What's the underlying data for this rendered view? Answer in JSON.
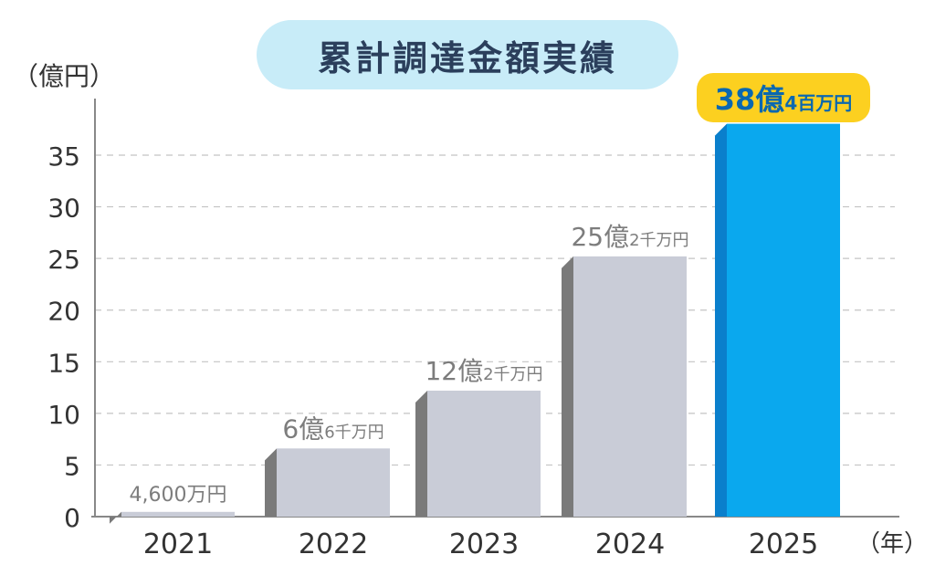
{
  "title": "累計調達金額実績",
  "y_unit": "（億円）",
  "x_unit": "（年）",
  "colors": {
    "bar": "#c9ccd7",
    "bar_side": "#7a7a7a",
    "highlight_bar": "#0aa8ee",
    "highlight_side": "#0a7fcc",
    "title_bg": "#c8ecf8",
    "highlight_label_bg": "#fcd020",
    "highlight_label_text": "#0a68b0",
    "label_text": "#7d7d7d"
  },
  "chart_data": {
    "type": "bar",
    "categories": [
      "2021",
      "2022",
      "2023",
      "2024",
      "2025"
    ],
    "values": [
      0.46,
      6.6,
      12.2,
      25.2,
      38.04
    ],
    "data_labels": [
      {
        "big": "4,600",
        "small": "万円"
      },
      {
        "big": "6億",
        "small": "6千万円"
      },
      {
        "big": "12億",
        "small": "2千万円"
      },
      {
        "big": "25億",
        "small": "2千万円"
      },
      {
        "big": "38億",
        "small": "4百万円"
      }
    ],
    "highlight_index": 4,
    "yticks": [
      0,
      5,
      10,
      15,
      20,
      25,
      30,
      35
    ],
    "ylim": [
      0,
      40
    ],
    "grid": "horizontal-dashed"
  }
}
